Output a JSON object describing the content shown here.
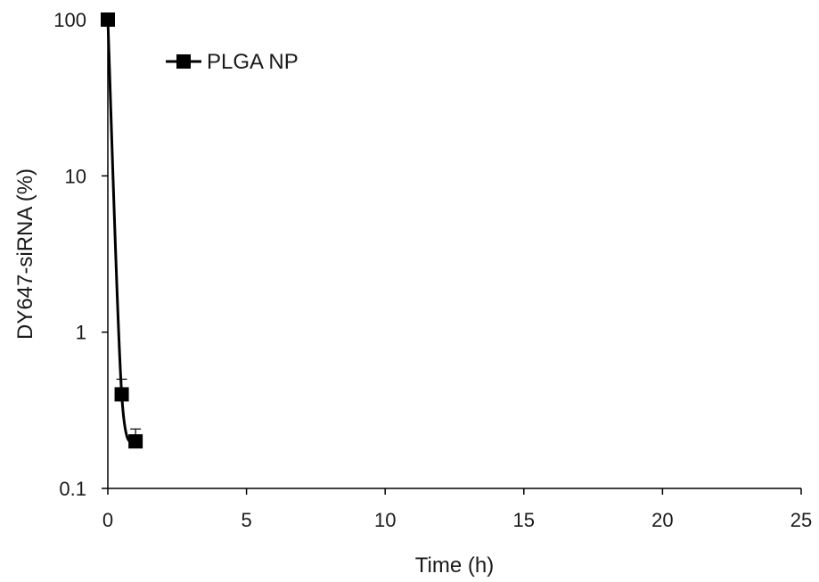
{
  "chart_data": {
    "type": "line",
    "title": "",
    "xlabel": "Time (h)",
    "ylabel": "DY647-siRNA (%)",
    "xlim": [
      0,
      25
    ],
    "ylim": [
      0.1,
      100
    ],
    "yscale": "log",
    "x_ticks": [
      0,
      5,
      10,
      15,
      20,
      25
    ],
    "x_tick_labels": [
      "0",
      "5",
      "10",
      "15",
      "20",
      "25"
    ],
    "y_ticks": [
      0.1,
      1,
      10,
      100
    ],
    "y_tick_labels": [
      "0.1",
      "1",
      "10",
      "100"
    ],
    "grid": false,
    "legend": {
      "position": "top-left"
    },
    "series": [
      {
        "name": "PLGA NP",
        "color": "#000000",
        "marker": "square",
        "smooth": true,
        "x": [
          0,
          0.5,
          1
        ],
        "y": [
          100,
          0.4,
          0.2
        ],
        "error": [
          0,
          0.1,
          0.04
        ]
      }
    ]
  }
}
